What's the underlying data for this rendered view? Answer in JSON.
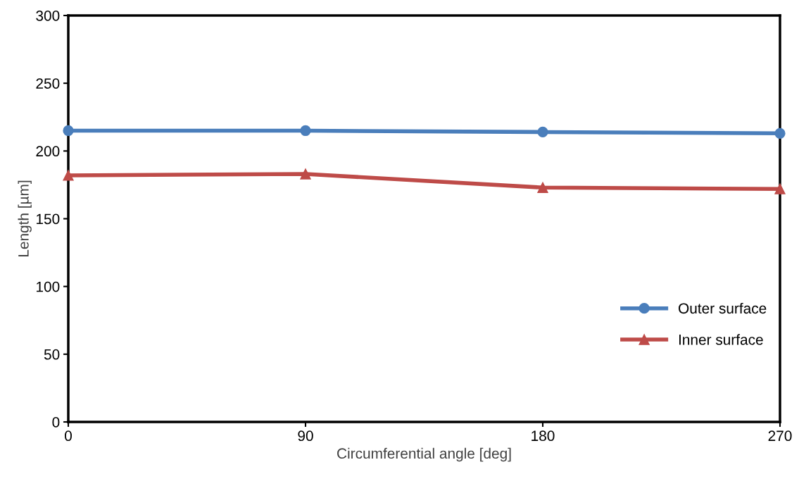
{
  "chart_data": {
    "type": "line",
    "xlabel": "Circumferential angle [deg]",
    "ylabel": "Length [µm]",
    "x": [
      0,
      90,
      180,
      270
    ],
    "series": [
      {
        "name": "Outer surface",
        "color": "#4a7ebb",
        "marker": "circle",
        "values": [
          215,
          215,
          214,
          213
        ]
      },
      {
        "name": "Inner surface",
        "color": "#be4b48",
        "marker": "triangle",
        "values": [
          182,
          183,
          173,
          172
        ]
      }
    ],
    "xlim": [
      0,
      270
    ],
    "xticks": [
      0,
      90,
      180,
      270
    ],
    "ylim": [
      0,
      300
    ],
    "yticks": [
      0,
      50,
      100,
      150,
      200,
      250,
      300
    ],
    "grid": false,
    "legend": "bottom right",
    "line_style": "solid"
  }
}
